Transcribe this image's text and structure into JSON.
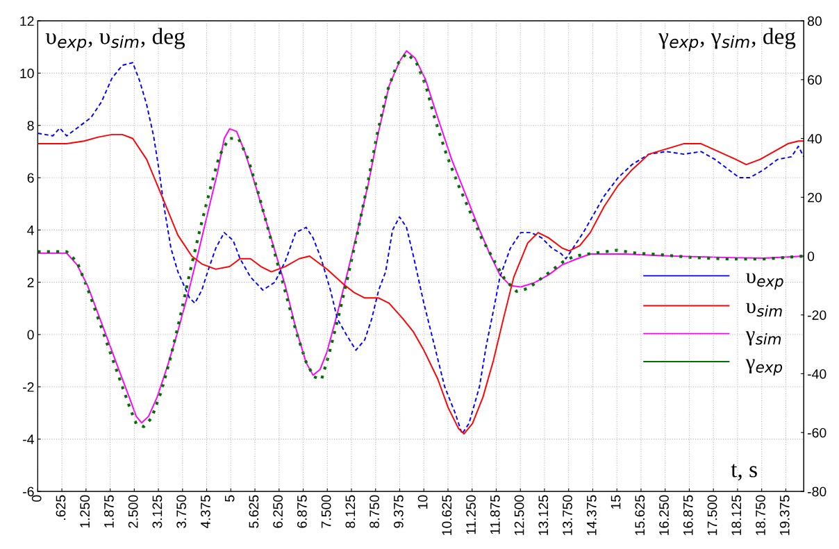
{
  "chart_data": {
    "type": "line",
    "ylabel": "υ$_{exp}$, υ$_{sim}$, deg",
    "y2label": "γ$_{exp}$, γ$_{sim}$, deg",
    "xlabel": "t, s",
    "xlim": [
      0,
      19.84
    ],
    "ylim": [
      -6,
      12
    ],
    "y2lim": [
      -80,
      80
    ],
    "yticks": [
      -6,
      -4,
      -2,
      0,
      2,
      4,
      6,
      8,
      10,
      12
    ],
    "y2ticks": [
      -80,
      -60,
      -40,
      -20,
      0,
      20,
      40,
      60,
      80
    ],
    "xticks": [
      0,
      {
        "value": 0.625,
        "label": ".625"
      },
      {
        "value": 1.25,
        "label": "1.250"
      },
      {
        "value": 1.875,
        "label": "1.875"
      },
      {
        "value": 2.5,
        "label": "2.500"
      },
      {
        "value": 3.125,
        "label": "3.125"
      },
      {
        "value": 3.75,
        "label": "3.750"
      },
      {
        "value": 4.375,
        "label": "4.375"
      },
      5,
      {
        "value": 5.625,
        "label": "5.625"
      },
      {
        "value": 6.25,
        "label": "6.250"
      },
      {
        "value": 6.875,
        "label": "6.875"
      },
      {
        "value": 7.5,
        "label": "7.500"
      },
      {
        "value": 8.125,
        "label": "8.125"
      },
      {
        "value": 8.75,
        "label": "8.750"
      },
      {
        "value": 9.375,
        "label": "9.375"
      },
      10,
      {
        "value": 10.625,
        "label": "10.625"
      },
      {
        "value": 11.25,
        "label": "11.250"
      },
      {
        "value": 11.875,
        "label": "11.875"
      },
      {
        "value": 12.5,
        "label": "12.500"
      },
      {
        "value": 13.125,
        "label": "13.125"
      },
      {
        "value": 13.75,
        "label": "13.750"
      },
      {
        "value": 14.375,
        "label": "14.375"
      },
      15,
      {
        "value": 15.625,
        "label": "15.625"
      },
      {
        "value": 16.25,
        "label": "16.250"
      },
      {
        "value": 16.875,
        "label": "16.875"
      },
      {
        "value": 17.5,
        "label": "17.500"
      },
      {
        "value": 18.125,
        "label": "18.125"
      },
      {
        "value": 18.75,
        "label": "18.750"
      },
      {
        "value": 19.375,
        "label": "19.375"
      }
    ],
    "grid": true,
    "legend": "right",
    "marker": "none",
    "series": [
      {
        "name": "υ$_{exp}$",
        "color": "#0000ff",
        "line_style": "dashed",
        "x": [
          0,
          0.39,
          0.57,
          0.75,
          1.02,
          1.38,
          1.65,
          1.92,
          2.19,
          2.46,
          2.64,
          2.82,
          3.0,
          3.14,
          3.27,
          3.45,
          3.63,
          3.81,
          3.93,
          4.07,
          4.25,
          4.4,
          4.61,
          4.83,
          5.06,
          5.24,
          5.51,
          5.83,
          6.14,
          6.41,
          6.68,
          6.95,
          7.13,
          7.34,
          7.58,
          7.76,
          7.99,
          8.24,
          8.47,
          8.65,
          8.83,
          9.01,
          9.19,
          9.37,
          9.55,
          9.73,
          10.0,
          10.27,
          10.54,
          10.81,
          10.99,
          11.17,
          11.44,
          11.62,
          11.8,
          11.97,
          12.24,
          12.51,
          12.78,
          13.05,
          13.32,
          13.55,
          13.68,
          13.86,
          14.13,
          14.4,
          14.67,
          15.03,
          15.39,
          15.83,
          16.28,
          16.73,
          17.18,
          17.54,
          17.9,
          18.17,
          18.44,
          18.8,
          19.16,
          19.52,
          19.7,
          19.84
        ],
        "values": [
          7.7,
          7.6,
          7.9,
          7.6,
          7.9,
          8.3,
          8.9,
          9.8,
          10.3,
          10.4,
          9.7,
          8.8,
          7.6,
          6.3,
          4.9,
          3.3,
          2.4,
          1.8,
          1.4,
          1.2,
          1.7,
          2.4,
          3.3,
          3.9,
          3.6,
          2.9,
          2.2,
          1.7,
          2.0,
          2.8,
          3.9,
          4.1,
          3.7,
          2.9,
          1.7,
          0.6,
          0.0,
          -0.6,
          -0.2,
          0.6,
          1.7,
          2.4,
          4.0,
          4.5,
          4.1,
          3.0,
          1.2,
          -0.4,
          -2.0,
          -3.0,
          -3.8,
          -3.4,
          -2.0,
          -0.4,
          0.9,
          2.2,
          3.3,
          3.9,
          3.9,
          3.7,
          3.3,
          3.1,
          2.9,
          3.3,
          3.9,
          4.6,
          5.3,
          6.0,
          6.5,
          6.9,
          7.0,
          6.9,
          7.0,
          6.7,
          6.3,
          6.0,
          6.0,
          6.3,
          6.7,
          6.8,
          7.2,
          6.8
        ]
      },
      {
        "name": "υ$_{sim}$",
        "color": "#ff0000",
        "line_style": "solid",
        "x": [
          0,
          0.75,
          1.2,
          1.56,
          1.92,
          2.19,
          2.46,
          2.82,
          3.27,
          3.63,
          3.99,
          4.25,
          4.61,
          4.97,
          5.24,
          5.51,
          5.78,
          6.05,
          6.41,
          6.77,
          7.04,
          7.49,
          7.94,
          8.2,
          8.47,
          8.83,
          9.1,
          9.46,
          9.73,
          10.0,
          10.36,
          10.63,
          10.9,
          11.04,
          11.26,
          11.53,
          11.8,
          12.06,
          12.33,
          12.69,
          12.96,
          13.23,
          13.59,
          13.77,
          14.04,
          14.31,
          14.67,
          15.03,
          15.39,
          15.83,
          16.28,
          16.73,
          17.18,
          17.63,
          18.08,
          18.35,
          18.71,
          19.07,
          19.43,
          19.7,
          19.84
        ],
        "values": [
          7.3,
          7.3,
          7.4,
          7.55,
          7.65,
          7.65,
          7.5,
          6.7,
          5.1,
          3.8,
          3.0,
          2.7,
          2.5,
          2.6,
          2.9,
          2.9,
          2.6,
          2.4,
          2.6,
          2.9,
          3.0,
          2.5,
          1.9,
          1.6,
          1.4,
          1.4,
          1.2,
          0.6,
          0.1,
          -0.6,
          -1.7,
          -2.8,
          -3.6,
          -3.8,
          -3.4,
          -2.4,
          -1.0,
          0.6,
          2.2,
          3.5,
          3.9,
          3.7,
          3.3,
          3.2,
          3.4,
          3.9,
          4.9,
          5.7,
          6.3,
          6.9,
          7.1,
          7.3,
          7.3,
          7.0,
          6.7,
          6.5,
          6.7,
          7.0,
          7.3,
          7.4,
          7.4
        ]
      },
      {
        "name": "γ$_{sim}$",
        "color": "#ff00ff",
        "line_style": "solid",
        "axis": "y2",
        "x": [
          0,
          0.75,
          1.02,
          1.29,
          1.56,
          1.83,
          2.1,
          2.37,
          2.55,
          2.69,
          2.87,
          3.09,
          3.36,
          3.63,
          3.9,
          4.17,
          4.43,
          4.65,
          4.83,
          4.97,
          5.15,
          5.37,
          5.6,
          5.87,
          6.14,
          6.41,
          6.68,
          6.95,
          7.13,
          7.31,
          7.49,
          7.76,
          8.03,
          8.29,
          8.56,
          8.83,
          9.1,
          9.37,
          9.55,
          9.77,
          10.04,
          10.36,
          10.72,
          11.08,
          11.44,
          11.71,
          11.97,
          12.24,
          12.51,
          12.87,
          13.23,
          13.59,
          13.95,
          14.31,
          15.21,
          16.1,
          17.0,
          17.9,
          18.8,
          19.84
        ],
        "values": [
          1,
          1,
          -3,
          -10,
          -19.5,
          -29,
          -38.6,
          -48,
          -54.5,
          -56.7,
          -54.5,
          -48,
          -37.4,
          -25.5,
          -12.4,
          1.9,
          16.2,
          28.1,
          40,
          43.3,
          42.4,
          35.2,
          25.7,
          13.8,
          1.9,
          -10,
          -24.3,
          -36.2,
          -40.5,
          -38.6,
          -32.6,
          -19.5,
          -5.2,
          9,
          24.5,
          42.4,
          57.9,
          66.2,
          69.8,
          67.4,
          60.2,
          47.1,
          32.9,
          21,
          9,
          0.7,
          -6.4,
          -10,
          -10.5,
          -9,
          -6.4,
          -2.9,
          -1,
          0.7,
          0.7,
          0.2,
          -0.2,
          -0.5,
          -0.7,
          0
        ]
      },
      {
        "name": "γ$_{exp}$",
        "color": "#007000",
        "line_style": "dotted",
        "axis": "y2",
        "x": [
          0,
          0.75,
          1.02,
          1.29,
          1.56,
          1.83,
          2.1,
          2.37,
          2.55,
          2.75,
          2.95,
          3.2,
          3.45,
          3.7,
          3.95,
          4.2,
          4.45,
          4.7,
          4.95,
          5.2,
          5.45,
          5.7,
          5.95,
          6.2,
          6.45,
          6.7,
          6.95,
          7.15,
          7.35,
          7.55,
          7.8,
          8.05,
          8.3,
          8.55,
          8.8,
          9.05,
          9.3,
          9.55,
          9.8,
          10.05,
          10.3,
          10.6,
          10.9,
          11.2,
          11.5,
          11.8,
          12.1,
          12.4,
          12.7,
          13.0,
          13.3,
          13.6,
          13.9,
          14.4,
          15.0,
          15.5,
          16.1,
          17.0,
          17.9,
          18.8,
          19.84
        ],
        "values": [
          1.5,
          1.5,
          -2,
          -11,
          -21,
          -31,
          -41,
          -51,
          -57,
          -58,
          -55,
          -46,
          -34,
          -20,
          -5,
          9,
          22,
          34,
          40,
          40,
          33,
          22,
          10,
          -2,
          -14,
          -26,
          -36,
          -41,
          -42,
          -33,
          -20,
          -6,
          9,
          25,
          42,
          56,
          65,
          69,
          66,
          58,
          46,
          34,
          24,
          15,
          6,
          -1,
          -8,
          -12,
          -11,
          -8,
          -5,
          -2,
          0,
          1,
          2,
          1,
          0.5,
          -0.5,
          -1,
          -1,
          0
        ]
      }
    ]
  }
}
